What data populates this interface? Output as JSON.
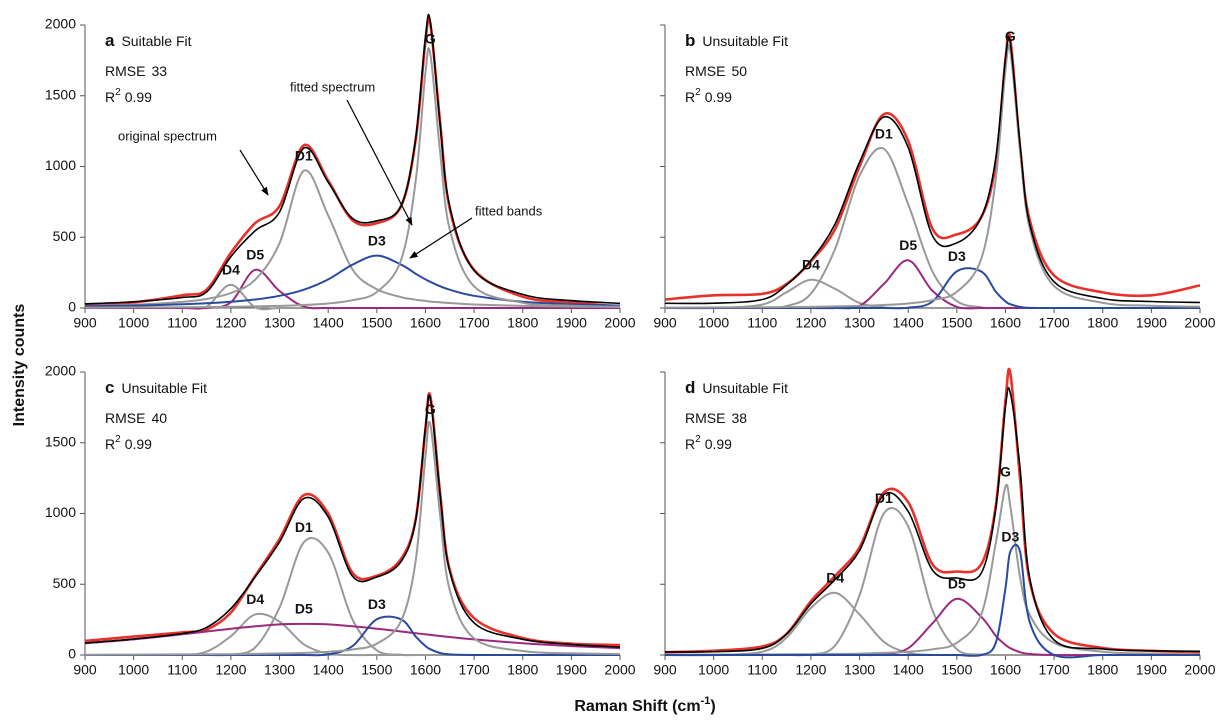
{
  "y_label": "Intensity counts",
  "x_label": {
    "text": "Raman Shift (cm",
    "superscript": "-1",
    "suffix": ")"
  },
  "chart_data": [
    {
      "type": "line",
      "letter": "a",
      "title": "Suitable Fit",
      "rmse_label": "RMSE",
      "rmse": 33,
      "r2_label": "R",
      "r2_superscript": "2",
      "r2": 0.99,
      "annotations": [
        "original spectrum",
        "fitted spectrum",
        "fitted bands"
      ],
      "x": [
        900,
        1000,
        1100,
        1150,
        1200,
        1250,
        1300,
        1350,
        1400,
        1450,
        1500,
        1550,
        1580,
        1600,
        1610,
        1630,
        1650,
        1700,
        1800,
        1900,
        2000
      ],
      "xlim": [
        900,
        2000
      ],
      "xticks": [
        900,
        1000,
        1100,
        1200,
        1300,
        1400,
        1500,
        1600,
        1700,
        1800,
        1900,
        2000
      ],
      "ylim": [
        0,
        2000
      ],
      "yticks": [
        0,
        500,
        1000,
        1500,
        2000
      ],
      "series": [
        {
          "color": "#e8312a",
          "values": [
            20,
            40,
            90,
            130,
            390,
            600,
            720,
            1150,
            900,
            620,
            600,
            720,
            1190,
            1890,
            2010,
            1320,
            700,
            270,
            80,
            40,
            10
          ]
        },
        {
          "name": "D4",
          "color": "#999999",
          "values": [
            0,
            0,
            0,
            10,
            165,
            5,
            0,
            0,
            0,
            0,
            0,
            0,
            0,
            0,
            0,
            0,
            0,
            0,
            0,
            0,
            0
          ]
        },
        {
          "name": "D5",
          "color": "#9b2a7f",
          "values": [
            0,
            0,
            0,
            0,
            40,
            270,
            120,
            10,
            0,
            0,
            0,
            0,
            0,
            0,
            0,
            0,
            0,
            0,
            0,
            0,
            0
          ]
        },
        {
          "name": "D1",
          "color": "#999999",
          "values": [
            14,
            23,
            43,
            64,
            106,
            200,
            457,
            970,
            654,
            272,
            133,
            77,
            59,
            50,
            45,
            40,
            35,
            25,
            15,
            10,
            7
          ]
        },
        {
          "name": "D3",
          "color": "#2a4a9e",
          "values": [
            12,
            17,
            26,
            33,
            44,
            60,
            86,
            129,
            202,
            306,
            370,
            306,
            242,
            202,
            185,
            154,
            129,
            86,
            44,
            26,
            17
          ]
        },
        {
          "name": "G",
          "color": "#999999",
          "values": [
            3,
            4,
            5,
            7,
            8,
            11,
            15,
            21,
            32,
            55,
            113,
            340,
            900,
            1667,
            1795,
            1110,
            554,
            153,
            37,
            16,
            9
          ]
        },
        {
          "color": "#000000",
          "values": [
            29,
            44,
            74,
            114,
            363,
            546,
            678,
            1130,
            888,
            633,
            616,
            723,
            1201,
            1919,
            2025,
            1304,
            718,
            264,
            96,
            52,
            33
          ]
        }
      ]
    },
    {
      "type": "line",
      "letter": "b",
      "title": "Unsuitable Fit",
      "rmse_label": "RMSE",
      "rmse": 50,
      "r2_label": "R",
      "r2_superscript": "2",
      "r2": 0.99,
      "x": [
        900,
        1000,
        1100,
        1150,
        1200,
        1250,
        1300,
        1350,
        1400,
        1450,
        1500,
        1550,
        1580,
        1600,
        1610,
        1630,
        1650,
        1700,
        1800,
        1900,
        2000
      ],
      "xlim": [
        900,
        2000
      ],
      "xticks": [
        900,
        1000,
        1100,
        1200,
        1300,
        1400,
        1500,
        1600,
        1700,
        1800,
        1900,
        2000
      ],
      "ylim": [
        0,
        2000
      ],
      "yticks": [
        0,
        500,
        1000,
        1500,
        2000
      ],
      "series": [
        {
          "color": "#e8312a",
          "values": [
            60,
            90,
            100,
            170,
            330,
            560,
            1000,
            1370,
            1180,
            560,
            520,
            640,
            1020,
            1760,
            1900,
            1140,
            620,
            230,
            110,
            90,
            160
          ]
        },
        {
          "name": "D4",
          "color": "#999999",
          "values": [
            0,
            0,
            24,
            112,
            199,
            135,
            35,
            4,
            0,
            0,
            0,
            0,
            0,
            0,
            0,
            0,
            0,
            0,
            0,
            0,
            0
          ]
        },
        {
          "name": "D1",
          "color": "#999999",
          "values": [
            0,
            0,
            1,
            14,
            101,
            420,
            935,
            1125,
            733,
            257,
            49,
            5,
            0,
            0,
            0,
            0,
            0,
            0,
            0,
            0,
            0
          ]
        },
        {
          "name": "D5",
          "color": "#9b2a7f",
          "values": [
            0,
            0,
            0,
            0,
            0,
            0,
            15,
            170,
            337,
            121,
            8,
            0,
            0,
            0,
            0,
            0,
            0,
            0,
            0,
            0,
            0
          ]
        },
        {
          "name": "D3",
          "color": "#2a4a9e",
          "values": [
            0,
            0,
            0,
            0,
            0,
            0,
            0,
            0,
            2,
            46,
            259,
            259,
            116,
            46,
            27,
            8,
            1,
            0,
            0,
            0,
            0
          ]
        },
        {
          "name": "G",
          "color": "#999999",
          "values": [
            3,
            4,
            5,
            7,
            8,
            11,
            15,
            21,
            32,
            56,
            114,
            344,
            910,
            1686,
            1815,
            1122,
            560,
            155,
            37,
            16,
            9
          ]
        },
        {
          "color": "#000000",
          "values": [
            33,
            34,
            60,
            163,
            338,
            596,
            1030,
            1350,
            1134,
            510,
            460,
            638,
            1056,
            1762,
            1872,
            1160,
            591,
            185,
            67,
            46,
            39
          ]
        }
      ]
    },
    {
      "type": "line",
      "letter": "c",
      "title": "Unsuitable Fit",
      "rmse_label": "RMSE",
      "rmse": 40,
      "r2_label": "R",
      "r2_superscript": "2",
      "r2": 0.99,
      "x": [
        900,
        1000,
        1100,
        1150,
        1200,
        1250,
        1300,
        1350,
        1400,
        1450,
        1500,
        1550,
        1580,
        1600,
        1610,
        1630,
        1650,
        1700,
        1800,
        1900,
        2000
      ],
      "xlim": [
        900,
        2000
      ],
      "xticks": [
        900,
        1000,
        1100,
        1200,
        1300,
        1400,
        1500,
        1600,
        1700,
        1800,
        1900,
        2000
      ],
      "ylim": [
        0,
        2000
      ],
      "yticks": [
        0,
        500,
        1000,
        1500,
        2000
      ],
      "series": [
        {
          "color": "#e8312a",
          "values": [
            100,
            130,
            160,
            180,
            300,
            560,
            820,
            1130,
            1000,
            580,
            560,
            680,
            960,
            1600,
            1830,
            1150,
            600,
            260,
            120,
            80,
            70
          ]
        },
        {
          "name": "D4",
          "color": "#999999",
          "values": [
            0,
            0,
            2,
            24,
            133,
            287,
            236,
            75,
            9,
            0,
            0,
            0,
            0,
            0,
            0,
            0,
            0,
            0,
            0,
            0,
            0
          ]
        },
        {
          "name": "D1",
          "color": "#999999",
          "values": [
            0,
            0,
            0,
            0,
            3,
            54,
            335,
            797,
            724,
            251,
            33,
            2,
            0,
            0,
            0,
            0,
            0,
            0,
            0,
            0,
            0
          ]
        },
        {
          "name": "D5",
          "color": "#9b2a7f",
          "values": [
            83,
            110,
            146,
            166,
            186,
            203,
            216,
            220,
            216,
            203,
            186,
            166,
            154,
            146,
            142,
            134,
            127,
            110,
            83,
            63,
            49
          ]
        },
        {
          "name": "D3",
          "color": "#2a4a9e",
          "values": [
            0,
            0,
            0,
            0,
            0,
            0,
            0,
            0,
            4,
            63,
            252,
            252,
            130,
            63,
            41,
            14,
            4,
            0,
            0,
            0,
            0
          ]
        },
        {
          "name": "G",
          "color": "#999999",
          "values": [
            2,
            3,
            4,
            5,
            6,
            8,
            11,
            15,
            23,
            39,
            80,
            241,
            668,
            1405,
            1630,
            994,
            458,
            117,
            28,
            12,
            7
          ]
        },
        {
          "color": "#000000",
          "values": [
            85,
            113,
            152,
            195,
            328,
            552,
            798,
            1107,
            976,
            556,
            551,
            661,
            952,
            1614,
            1813,
            1142,
            589,
            227,
            111,
            75,
            56
          ]
        }
      ]
    },
    {
      "type": "line",
      "letter": "d",
      "title": "Unsuitable Fit",
      "rmse_label": "RMSE",
      "rmse": 38,
      "r2_label": "R",
      "r2_superscript": "2",
      "r2": 0.99,
      "x": [
        900,
        1000,
        1100,
        1150,
        1200,
        1250,
        1300,
        1350,
        1400,
        1450,
        1500,
        1550,
        1580,
        1600,
        1610,
        1630,
        1650,
        1700,
        1800,
        1900,
        2000
      ],
      "xlim": [
        900,
        2000
      ],
      "xticks": [
        900,
        1000,
        1100,
        1200,
        1300,
        1400,
        1500,
        1600,
        1700,
        1800,
        1900,
        2000
      ],
      "ylim": [
        0,
        2000
      ],
      "yticks": [
        0,
        500,
        1000,
        1500,
        2000
      ],
      "series": [
        {
          "color": "#e8312a",
          "values": [
            20,
            30,
            60,
            150,
            380,
            560,
            760,
            1150,
            1080,
            640,
            590,
            640,
            1050,
            1800,
            1990,
            1250,
            520,
            150,
            50,
            30,
            20
          ]
        },
        {
          "name": "D4",
          "color": "#999999",
          "values": [
            0,
            0,
            23,
            123,
            332,
            439,
            287,
            93,
            15,
            1,
            0,
            0,
            0,
            0,
            0,
            0,
            0,
            0,
            0,
            0,
            0
          ]
        },
        {
          "name": "D1",
          "color": "#999999",
          "values": [
            0,
            0,
            0,
            0,
            4,
            68,
            421,
            1001,
            909,
            315,
            41,
            3,
            0,
            0,
            0,
            0,
            0,
            0,
            0,
            0,
            0
          ]
        },
        {
          "name": "D5",
          "color": "#9b2a7f",
          "values": [
            0,
            0,
            0,
            0,
            0,
            0,
            0,
            4,
            48,
            224,
            397,
            271,
            136,
            71,
            48,
            20,
            7,
            0,
            0,
            0,
            0
          ]
        },
        {
          "name": "G",
          "color": "#999999",
          "values": [
            2,
            3,
            4,
            5,
            6,
            8,
            10,
            15,
            23,
            40,
            86,
            283,
            788,
            1190,
            1053,
            553,
            283,
            86,
            23,
            10,
            6
          ]
        },
        {
          "name": "D3",
          "color": "#2a4a9e",
          "values": [
            0,
            0,
            0,
            0,
            0,
            0,
            0,
            0,
            0,
            0,
            0,
            0,
            85,
            474,
            731,
            731,
            231,
            0,
            0,
            0,
            0
          ]
        },
        {
          "color": "#000000",
          "values": [
            22,
            23,
            47,
            148,
            362,
            535,
            738,
            1133,
            1015,
            600,
            544,
            577,
            1029,
            1755,
            1852,
            1324,
            541,
            106,
            43,
            30,
            26
          ]
        }
      ]
    }
  ]
}
